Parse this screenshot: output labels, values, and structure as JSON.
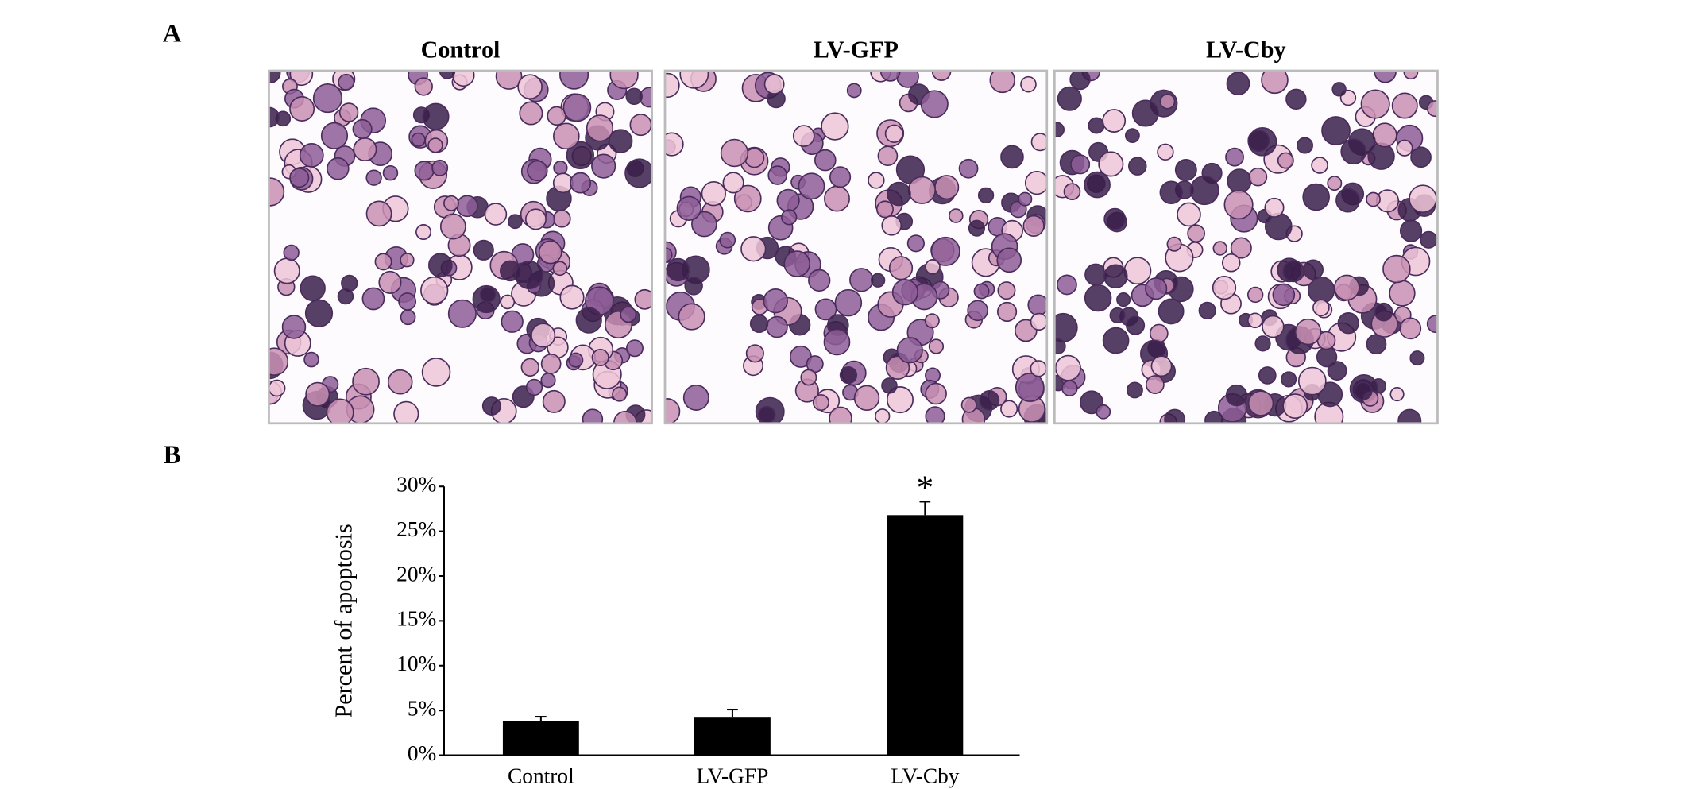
{
  "panels": {
    "a_label": "A",
    "b_label": "B"
  },
  "images": [
    {
      "title": "Control"
    },
    {
      "title": "LV-GFP"
    },
    {
      "title": "LV-Cby"
    }
  ],
  "chart_data": {
    "type": "bar",
    "y_label": "Percent of apoptosis",
    "categories": [
      "Control",
      "LV-GFP",
      "LV-Cby"
    ],
    "values": [
      3.8,
      4.2,
      26.8
    ],
    "errors": [
      0.5,
      0.9,
      1.5
    ],
    "color": "#000000",
    "ylim": [
      0,
      30
    ],
    "yticks": [
      {
        "value": 0,
        "label": "0%"
      },
      {
        "value": 5,
        "label": "5%"
      },
      {
        "value": 10,
        "label": "10%"
      },
      {
        "value": 15,
        "label": "15%"
      },
      {
        "value": 20,
        "label": "20%"
      },
      {
        "value": 25,
        "label": "25%"
      },
      {
        "value": 30,
        "label": "30%"
      }
    ],
    "annotations": [
      {
        "text": "*",
        "category": "LV-Cby"
      }
    ]
  }
}
